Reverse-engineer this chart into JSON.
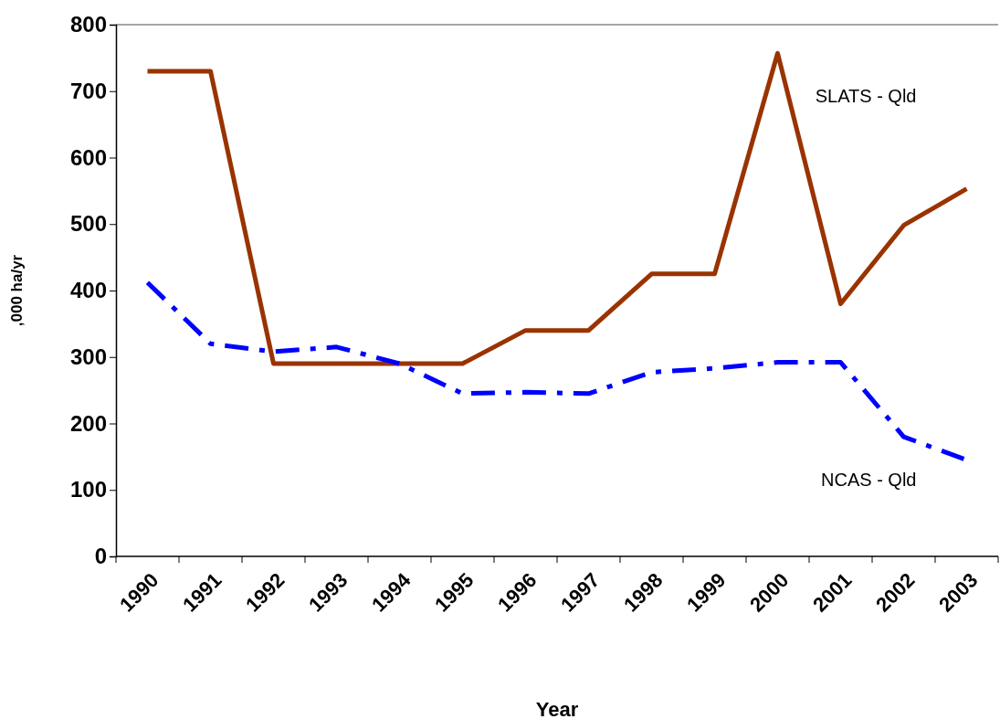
{
  "chart_data": {
    "type": "line",
    "xlabel": "Year",
    "ylabel": ",000 ha/yr",
    "categories": [
      "1990",
      "1991",
      "1992",
      "1993",
      "1994",
      "1995",
      "1996",
      "1997",
      "1998",
      "1999",
      "2000",
      "2001",
      "2002",
      "2003"
    ],
    "series": [
      {
        "name": "SLATS - Qld",
        "color": "#993300",
        "line_style": "solid",
        "values": [
          730,
          730,
          290,
          290,
          290,
          290,
          340,
          340,
          425,
          425,
          757,
          380,
          498,
          553
        ]
      },
      {
        "name": "NCAS - Qld",
        "color": "#0000ff",
        "line_style": "dashed",
        "values": [
          412,
          320,
          308,
          315,
          290,
          245,
          247,
          245,
          277,
          283,
          292,
          292,
          180,
          145
        ]
      }
    ],
    "ylim": [
      0,
      800
    ],
    "yticks": [
      0,
      100,
      200,
      300,
      400,
      500,
      600,
      700,
      800
    ],
    "grid": false,
    "marker": "none"
  }
}
